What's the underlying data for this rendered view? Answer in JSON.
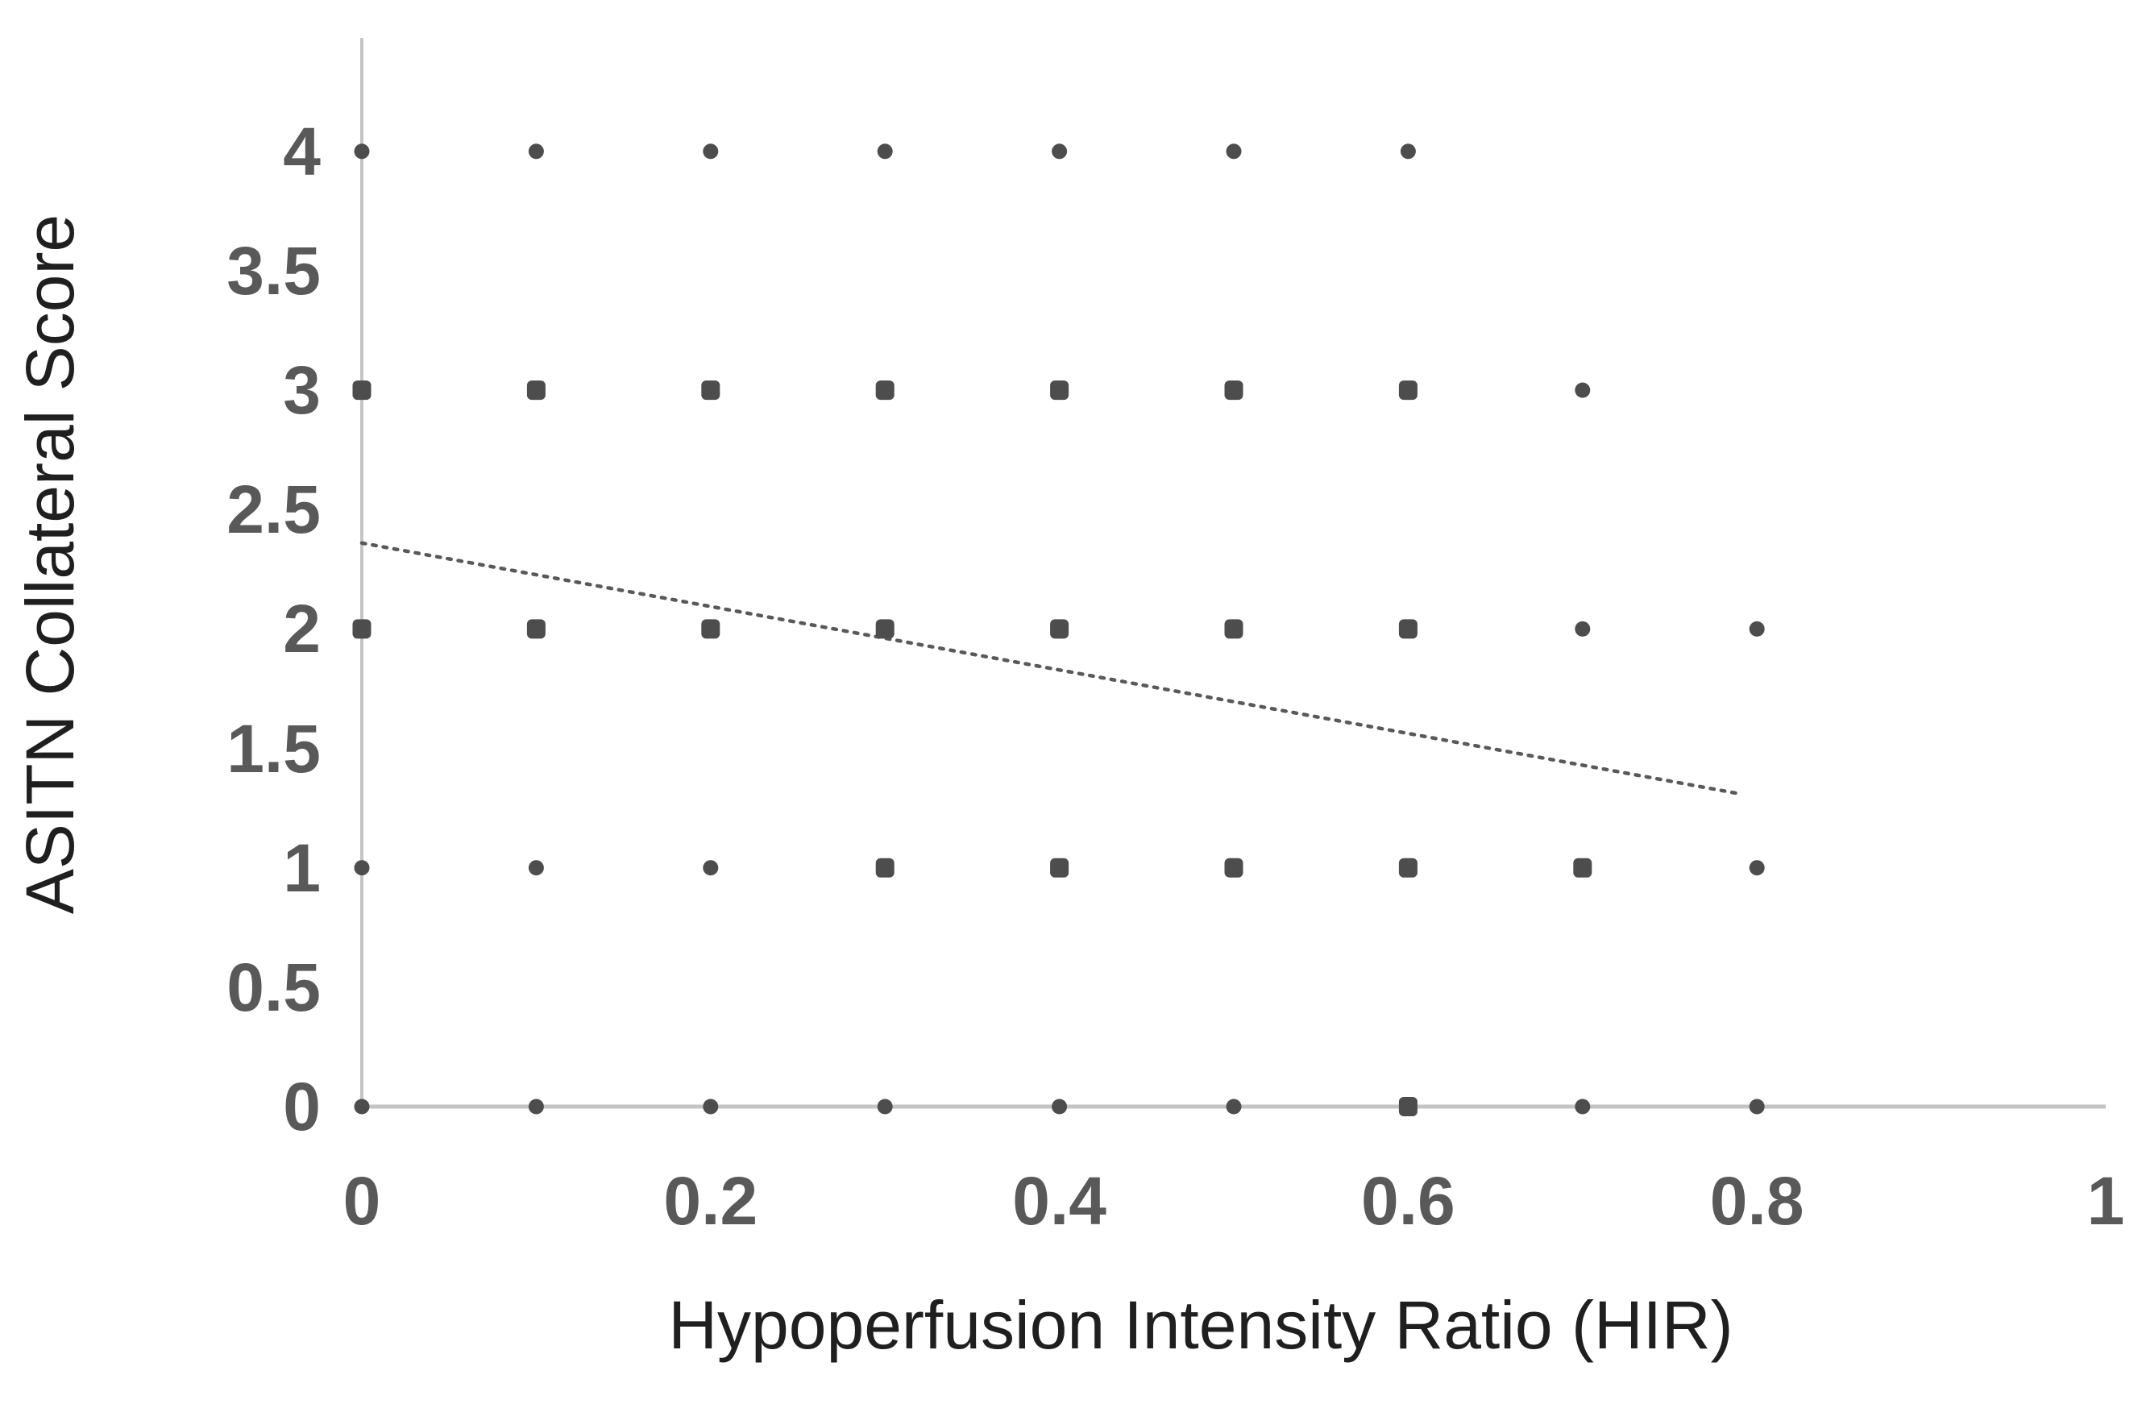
{
  "chart_data": {
    "type": "scatter",
    "title": "",
    "xlabel": "Hypoperfusion Intensity Ratio (HIR)",
    "ylabel": "ASITN Collateral Score",
    "xlim": [
      0,
      1
    ],
    "ylim": [
      0,
      4.5
    ],
    "grid": false,
    "legend": "none",
    "x_ticks": [
      {
        "label": "0",
        "value": 0
      },
      {
        "label": "0.2",
        "value": 0.2
      },
      {
        "label": "0.4",
        "value": 0.4
      },
      {
        "label": "0.6",
        "value": 0.6
      },
      {
        "label": "0.8",
        "value": 0.8
      },
      {
        "label": "1",
        "value": 1
      }
    ],
    "y_ticks": [
      {
        "label": "0",
        "value": 0
      },
      {
        "label": "0.5",
        "value": 0.5
      },
      {
        "label": "1",
        "value": 1
      },
      {
        "label": "1.5",
        "value": 1.5
      },
      {
        "label": "2",
        "value": 2
      },
      {
        "label": "2.5",
        "value": 2.5
      },
      {
        "label": "3",
        "value": 3
      },
      {
        "label": "3.5",
        "value": 3.5
      },
      {
        "label": "4",
        "value": 4
      }
    ],
    "points": [
      {
        "x": 0,
        "y": 4,
        "large": false
      },
      {
        "x": 0.1,
        "y": 4,
        "large": false
      },
      {
        "x": 0.2,
        "y": 4,
        "large": false
      },
      {
        "x": 0.3,
        "y": 4,
        "large": false
      },
      {
        "x": 0.4,
        "y": 4,
        "large": false
      },
      {
        "x": 0.5,
        "y": 4,
        "large": false
      },
      {
        "x": 0.6,
        "y": 4,
        "large": false
      },
      {
        "x": 0,
        "y": 3,
        "large": true
      },
      {
        "x": 0.1,
        "y": 3,
        "large": true
      },
      {
        "x": 0.2,
        "y": 3,
        "large": true
      },
      {
        "x": 0.3,
        "y": 3,
        "large": true
      },
      {
        "x": 0.4,
        "y": 3,
        "large": true
      },
      {
        "x": 0.5,
        "y": 3,
        "large": true
      },
      {
        "x": 0.6,
        "y": 3,
        "large": true
      },
      {
        "x": 0.7,
        "y": 3,
        "large": false
      },
      {
        "x": 0,
        "y": 2,
        "large": true
      },
      {
        "x": 0.1,
        "y": 2,
        "large": true
      },
      {
        "x": 0.2,
        "y": 2,
        "large": true
      },
      {
        "x": 0.3,
        "y": 2,
        "large": true
      },
      {
        "x": 0.4,
        "y": 2,
        "large": true
      },
      {
        "x": 0.5,
        "y": 2,
        "large": true
      },
      {
        "x": 0.6,
        "y": 2,
        "large": true
      },
      {
        "x": 0.7,
        "y": 2,
        "large": false
      },
      {
        "x": 0.8,
        "y": 2,
        "large": false
      },
      {
        "x": 0,
        "y": 1,
        "large": false
      },
      {
        "x": 0.1,
        "y": 1,
        "large": false
      },
      {
        "x": 0.2,
        "y": 1,
        "large": false
      },
      {
        "x": 0.3,
        "y": 1,
        "large": true
      },
      {
        "x": 0.4,
        "y": 1,
        "large": true
      },
      {
        "x": 0.5,
        "y": 1,
        "large": true
      },
      {
        "x": 0.6,
        "y": 1,
        "large": true
      },
      {
        "x": 0.7,
        "y": 1,
        "large": true
      },
      {
        "x": 0.8,
        "y": 1,
        "large": false
      },
      {
        "x": 0,
        "y": 0,
        "large": false
      },
      {
        "x": 0.1,
        "y": 0,
        "large": false
      },
      {
        "x": 0.2,
        "y": 0,
        "large": false
      },
      {
        "x": 0.3,
        "y": 0,
        "large": false
      },
      {
        "x": 0.4,
        "y": 0,
        "large": false
      },
      {
        "x": 0.5,
        "y": 0,
        "large": false
      },
      {
        "x": 0.6,
        "y": 0,
        "large": true
      },
      {
        "x": 0.7,
        "y": 0,
        "large": false
      },
      {
        "x": 0.8,
        "y": 0,
        "large": false
      }
    ],
    "trendline": {
      "style": "dotted",
      "x1": 0,
      "y1": 2.36,
      "x2": 0.79,
      "y2": 1.31
    },
    "colors": {
      "background": "#ffffff",
      "marker": "#4d4d4d",
      "trend": "#595959",
      "axis_line": "#c4c4c4",
      "tick_label": "#595959",
      "axis_title": "#1f1f1f"
    }
  }
}
